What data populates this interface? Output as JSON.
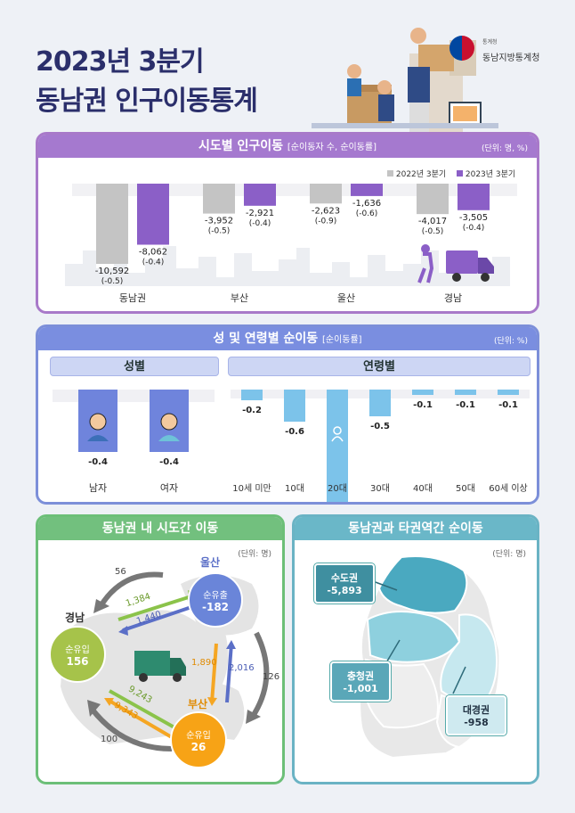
{
  "header": {
    "title_line1": "2023년 3분기",
    "title_line2": "동남권 인구이동통계",
    "logo_small": "통계청",
    "logo_big": "동남지방통계청"
  },
  "section1": {
    "title": "시도별 인구이동",
    "subtitle": "[순이동자 수, 순이동률]",
    "unit": "(단위: 명, %)",
    "legend": [
      "2022년 3분기",
      "2023년 3분기"
    ]
  },
  "chart_data": [
    {
      "type": "bar",
      "categories": [
        "동남권",
        "부산",
        "울산",
        "경남"
      ],
      "series": [
        {
          "name": "2022년 3분기",
          "values": [
            -10592,
            -3952,
            -2623,
            -4017
          ],
          "rates": [
            "(-0.5)",
            "(-0.5)",
            "(-0.9)",
            "(-0.5)"
          ],
          "labels": [
            "-10,592",
            "-3,952",
            "-2,623",
            "-4,017"
          ]
        },
        {
          "name": "2023년 3분기",
          "values": [
            -8062,
            -2921,
            -1636,
            -3505
          ],
          "rates": [
            "(-0.4)",
            "(-0.4)",
            "(-0.6)",
            "(-0.4)"
          ],
          "labels": [
            "-8,062",
            "-2,921",
            "-1,636",
            "-3,505"
          ]
        }
      ],
      "colors": [
        "#c4c4c4",
        "#8b5fc7"
      ]
    },
    {
      "type": "bar",
      "categories": [
        "남자",
        "여자"
      ],
      "values": [
        -0.4,
        -0.4
      ],
      "labels": [
        "-0.4",
        "-0.4"
      ]
    },
    {
      "type": "bar",
      "categories": [
        "10세 미만",
        "10대",
        "20대",
        "30대",
        "40대",
        "50대",
        "60세 이상"
      ],
      "values": [
        -0.2,
        -0.6,
        -2.2,
        -0.5,
        -0.1,
        -0.1,
        -0.1
      ],
      "labels": [
        "-0.2",
        "-0.6",
        "-2.2",
        "-0.5",
        "-0.1",
        "-0.1",
        "-0.1"
      ]
    }
  ],
  "section2": {
    "title": "성 및 연령별 순이동",
    "subtitle": "[순이동률]",
    "unit": "(단위: %)",
    "sex_header": "성별",
    "age_header": "연령별"
  },
  "section3": {
    "title": "동남권 내 시도간 이동",
    "unit": "(단위: 명)",
    "ulsan": {
      "name": "울산",
      "label": "순유출",
      "value": "-182"
    },
    "gyeongnam": {
      "name": "경남",
      "label": "순유입",
      "value": "156"
    },
    "busan": {
      "name": "부산",
      "label": "순유입",
      "value": "26"
    },
    "flows": {
      "g_to_u_outer": "56",
      "g_to_u": "1,384",
      "u_to_g": "1,440",
      "u_to_b": "2,016",
      "b_to_u": "1,890",
      "u_to_b_outer": "126",
      "g_to_b": "9,243",
      "b_to_g": "9,343",
      "b_to_g_outer": "100"
    }
  },
  "section4": {
    "title": "동남권과 타권역간 순이동",
    "unit": "(단위: 명)",
    "capital": {
      "name": "수도권",
      "value": "-5,893"
    },
    "chungcheong": {
      "name": "충청권",
      "value": "-1,001"
    },
    "daegyeong": {
      "name": "대경권",
      "value": "-958"
    }
  }
}
